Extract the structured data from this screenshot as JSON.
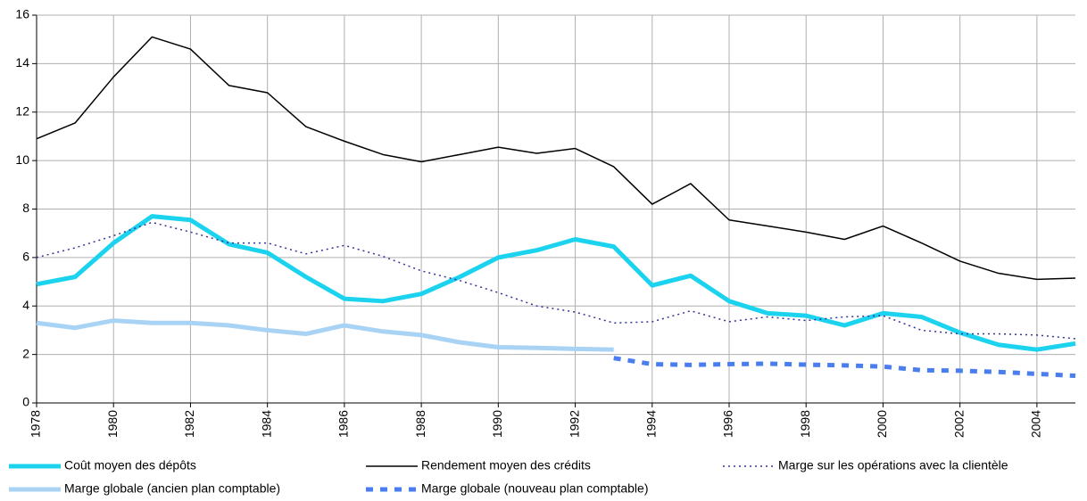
{
  "chart_data": {
    "type": "line",
    "x": [
      1978,
      1979,
      1980,
      1981,
      1982,
      1983,
      1984,
      1985,
      1986,
      1987,
      1988,
      1989,
      1990,
      1991,
      1992,
      1993,
      1994,
      1995,
      1996,
      1997,
      1998,
      1999,
      2000,
      2001,
      2002,
      2003,
      2004,
      2005
    ],
    "xlim": [
      1978,
      2005
    ],
    "xticks": [
      1978,
      1980,
      1982,
      1984,
      1986,
      1988,
      1990,
      1992,
      1994,
      1996,
      1998,
      2000,
      2002,
      2004
    ],
    "ylim": [
      0,
      16
    ],
    "yticks": [
      0,
      2,
      4,
      6,
      8,
      10,
      12,
      14,
      16
    ],
    "grid": true,
    "legend": "bottom",
    "series": [
      {
        "name": "Coût moyen des dépôts",
        "color": "#1bd3ee",
        "style": "solid",
        "weight": "bold",
        "values": [
          4.9,
          5.2,
          6.6,
          7.7,
          7.55,
          6.55,
          6.2,
          5.2,
          4.3,
          4.2,
          4.5,
          5.2,
          6.0,
          6.3,
          6.75,
          6.45,
          4.85,
          5.25,
          4.2,
          3.7,
          3.6,
          3.2,
          3.7,
          3.55,
          2.9,
          2.4,
          2.2,
          2.45
        ]
      },
      {
        "name": "Rendement moyen des crédits",
        "color": "#000000",
        "style": "solid",
        "weight": "normal",
        "values": [
          10.9,
          11.55,
          13.45,
          15.1,
          14.6,
          13.1,
          12.8,
          11.4,
          10.8,
          10.25,
          9.95,
          10.25,
          10.55,
          10.3,
          10.5,
          9.75,
          8.2,
          9.05,
          7.55,
          7.3,
          7.05,
          6.75,
          7.3,
          6.6,
          5.85,
          5.35,
          5.1,
          5.15
        ]
      },
      {
        "name": "Marge sur les opérations avec la clientèle",
        "color": "#333399",
        "style": "dotted",
        "weight": "normal",
        "values": [
          6.0,
          6.4,
          6.9,
          7.45,
          7.05,
          6.6,
          6.6,
          6.15,
          6.5,
          6.05,
          5.45,
          5.05,
          4.55,
          4.0,
          3.75,
          3.3,
          3.35,
          3.8,
          3.35,
          3.55,
          3.4,
          3.55,
          3.6,
          3.0,
          2.85,
          2.85,
          2.8,
          2.65
        ]
      },
      {
        "name": "Marge globale (ancien plan comptable)",
        "color": "#a8d3f5",
        "style": "solid",
        "weight": "bold",
        "values": [
          3.3,
          3.1,
          3.4,
          3.3,
          3.3,
          3.2,
          3.0,
          2.85,
          3.2,
          2.95,
          2.8,
          2.5,
          2.3,
          2.27,
          2.23,
          2.2,
          null,
          null,
          null,
          null,
          null,
          null,
          null,
          null,
          null,
          null,
          null,
          null
        ]
      },
      {
        "name": "Marge globale (nouveau plan comptable)",
        "color": "#4a7ef0",
        "style": "dashed",
        "weight": "bold",
        "values": [
          null,
          null,
          null,
          null,
          null,
          null,
          null,
          null,
          null,
          null,
          null,
          null,
          null,
          null,
          null,
          1.85,
          1.6,
          1.57,
          1.6,
          1.62,
          1.58,
          1.55,
          1.5,
          1.35,
          1.33,
          1.28,
          1.2,
          1.12
        ]
      }
    ]
  }
}
